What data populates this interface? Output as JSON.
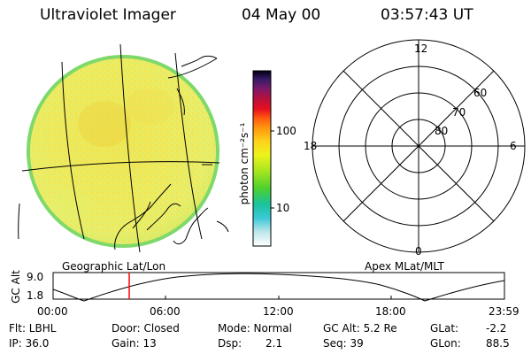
{
  "header": {
    "instrument": "Ultraviolet Imager",
    "date": "04 May 00",
    "time": "03:57:43 UT"
  },
  "colorbar": {
    "unit_label": "photon cm⁻²s⁻¹",
    "tick_100": "100",
    "tick_10": "10"
  },
  "left_panel": {
    "caption": "Geographic Lat/Lon"
  },
  "polar_plot": {
    "caption": "Apex MLat/MLT",
    "mlt_top": "12",
    "mlt_left": "18",
    "mlt_right": "6",
    "mlt_bottom": "0",
    "lat_60": "60",
    "lat_70": "70",
    "lat_80": "80"
  },
  "altitude_plot": {
    "ylabel": "GC Alt",
    "ytick_top": "9.0",
    "ytick_bottom": "1.8",
    "x_ticks": [
      "00:00",
      "06:00",
      "12:00",
      "18:00",
      "23:59"
    ],
    "marker_color": "#ff0000"
  },
  "status": {
    "filter": "Flt: LBHL",
    "ip": "IP: 36.0",
    "door": "Door: Closed",
    "gain": "Gain: 13",
    "mode": "Mode: Normal",
    "dsp_label": "Dsp:",
    "dsp_value": "2.1",
    "gc_alt": "GC Alt: 5.2 Re",
    "seq": "Seq: 39",
    "glat_label": "GLat:",
    "glat_value": "-2.2",
    "glon_label": "GLon:",
    "glon_value": "88.5"
  }
}
